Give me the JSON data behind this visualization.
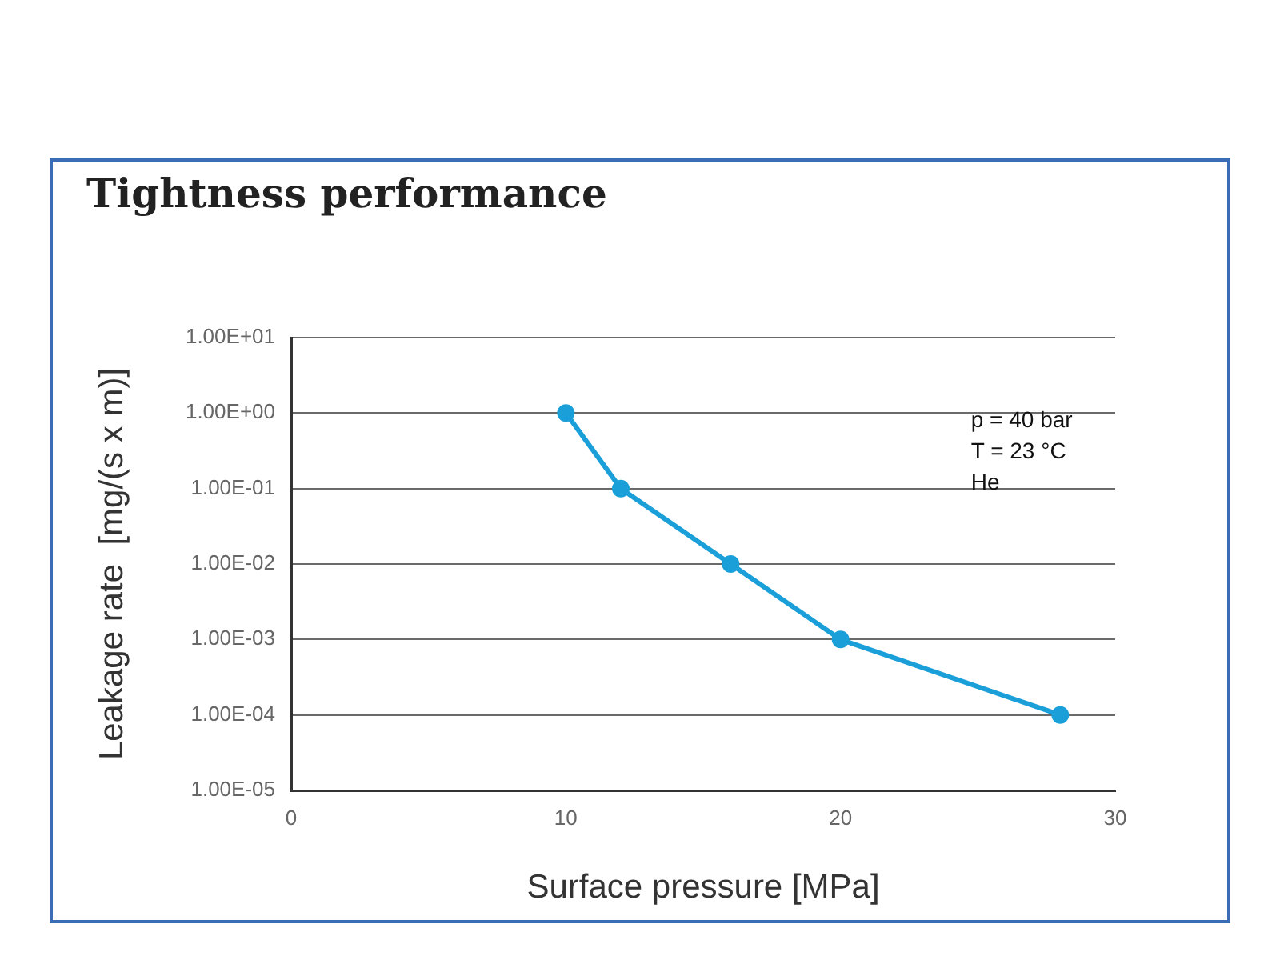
{
  "chart_data": {
    "type": "line",
    "title": "Tightness performance",
    "xlabel": "Surface pressure [MPa]",
    "ylabel": "Leakage rate  [mg/(s x m)]",
    "x": [
      10,
      12,
      16,
      20,
      28
    ],
    "series": [
      {
        "color": "#1a9fd9",
        "values": [
          1,
          0.1,
          0.01,
          0.001,
          0.0001
        ]
      }
    ],
    "xlim": [
      0,
      30
    ],
    "xticks": [
      0,
      10,
      20,
      30
    ],
    "ylim": [
      1e-05,
      10
    ],
    "yticks": [
      {
        "value": 1e-05,
        "label": "1.00E-05"
      },
      {
        "value": 0.0001,
        "label": "1.00E-04"
      },
      {
        "value": 0.001,
        "label": "1.00E-03"
      },
      {
        "value": 0.01,
        "label": "1.00E-02"
      },
      {
        "value": 0.1,
        "label": "1.00E-01"
      },
      {
        "value": 1,
        "label": "1.00E+00"
      },
      {
        "value": 10,
        "label": "1.00E+01"
      }
    ],
    "log": "y",
    "grid": "y",
    "marker": "circle",
    "line_style": "solid",
    "annotations": [
      "p = 40 bar",
      "T = 23 °C",
      "He"
    ]
  }
}
